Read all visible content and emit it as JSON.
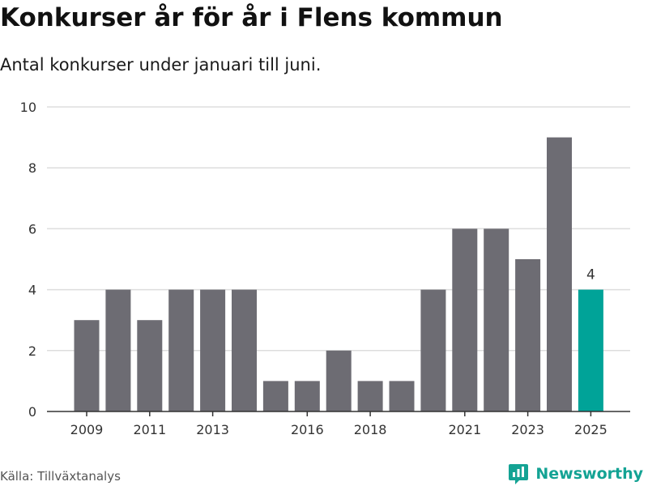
{
  "header": {
    "title": "Konkurser år för år i Flens kommun",
    "subtitle": "Antal konkurser under januari till juni."
  },
  "footer": {
    "source": "Källa: Tillväxtanalys",
    "brand": "Newsworthy",
    "brand_icon": "newsworthy-logo-icon"
  },
  "colors": {
    "bar": "#6d6c73",
    "highlight": "#00a398",
    "grid": "#dddddd",
    "axis": "#333333",
    "text": "#333333",
    "brand": "#14a394"
  },
  "chart_data": {
    "type": "bar",
    "categories": [
      "2009",
      "2010",
      "2011",
      "2012",
      "2013",
      "2014",
      "2015",
      "2016",
      "2017",
      "2018",
      "2019",
      "2020",
      "2021",
      "2022",
      "2023",
      "2024",
      "2025"
    ],
    "values": [
      3,
      4,
      3,
      4,
      4,
      4,
      1,
      1,
      2,
      1,
      1,
      4,
      6,
      6,
      5,
      9,
      4
    ],
    "x_tick_labels": [
      "2009",
      "2011",
      "2013",
      "2016",
      "2018",
      "2021",
      "2023",
      "2025"
    ],
    "y_ticks": [
      0,
      2,
      4,
      6,
      8,
      10
    ],
    "ylim": [
      0,
      10
    ],
    "highlight_category": "2025",
    "data_labels": [
      {
        "category": "2025",
        "value": 4
      }
    ],
    "title": "Konkurser år för år i Flens kommun",
    "subtitle": "Antal konkurser under januari till juni.",
    "xlabel": "",
    "ylabel": "",
    "grid": true
  }
}
